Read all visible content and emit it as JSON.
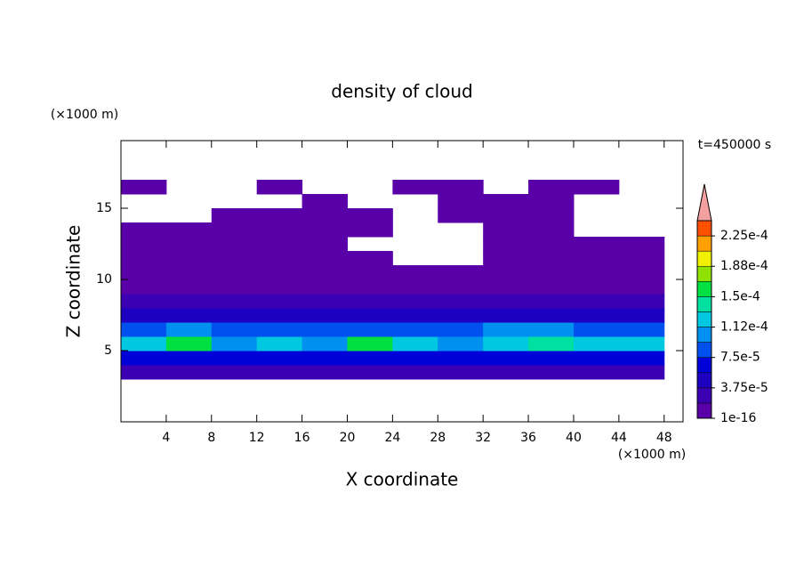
{
  "chart_data": {
    "type": "contour",
    "title": "density of cloud",
    "xlabel": "X coordinate",
    "ylabel": "Z coordinate",
    "xunit": "(×1000 m)",
    "yunit": "(×1000 m)",
    "annotation": "t=450000 s",
    "xlim": [
      0,
      49.67
    ],
    "ylim": [
      0,
      19.75
    ],
    "xticks": [
      4,
      8,
      12,
      16,
      20,
      24,
      28,
      32,
      36,
      40,
      44,
      48
    ],
    "yticks": [
      5,
      10,
      15
    ],
    "x": [
      2,
      6,
      10,
      14,
      18,
      22,
      26,
      30,
      34,
      38,
      42,
      46
    ],
    "y": [
      3.5,
      4.5,
      5.5,
      6.5,
      7.5,
      8.5,
      9.5,
      10.5,
      11.5,
      12.5,
      13.5,
      14.5,
      15.5,
      16.5
    ],
    "z": [
      [
        2e-05,
        2e-05,
        2e-05,
        2e-05,
        2e-05,
        2e-05,
        2e-05,
        2e-05,
        2e-05,
        2e-05,
        2e-05,
        2e-05
      ],
      [
        6e-05,
        7e-05,
        6e-05,
        6e-05,
        7e-05,
        6e-05,
        7e-05,
        6e-05,
        6e-05,
        7e-05,
        6e-05,
        7e-05
      ],
      [
        0.00013,
        0.00015,
        0.00011,
        0.00012,
        0.00011,
        0.00015,
        0.00012,
        0.00011,
        0.00013,
        0.00014,
        0.00013,
        0.00012
      ],
      [
        9e-05,
        0.0001,
        8e-05,
        9e-05,
        8e-05,
        9e-05,
        8e-05,
        8e-05,
        0.0001,
        0.00011,
        9e-05,
        9e-05
      ],
      [
        4e-05,
        5e-05,
        4e-05,
        4e-05,
        4e-05,
        5e-05,
        4e-05,
        4e-05,
        5e-05,
        5e-05,
        4e-05,
        4e-05
      ],
      [
        2e-05,
        2e-05,
        2e-05,
        2e-05,
        2e-05,
        2e-05,
        2e-05,
        2e-05,
        2e-05,
        2e-05,
        2e-05,
        2e-05
      ],
      [
        1e-05,
        5e-06,
        1e-05,
        1e-05,
        5e-06,
        1e-05,
        1e-05,
        5e-06,
        1e-05,
        5e-06,
        1e-05,
        1e-05
      ],
      [
        5e-06,
        5e-06,
        5e-06,
        5e-06,
        5e-06,
        5e-06,
        5e-06,
        5e-06,
        5e-06,
        5e-06,
        5e-06,
        5e-06
      ],
      [
        5e-06,
        5e-06,
        5e-06,
        5e-06,
        5e-06,
        5e-06,
        null,
        null,
        5e-06,
        5e-06,
        5e-06,
        5e-06
      ],
      [
        5e-06,
        5e-06,
        5e-06,
        5e-06,
        5e-06,
        null,
        null,
        null,
        5e-06,
        5e-06,
        5e-06,
        5e-06
      ],
      [
        5e-06,
        5e-06,
        5e-06,
        5e-06,
        5e-06,
        5e-06,
        null,
        null,
        5e-06,
        5e-06,
        null,
        null
      ],
      [
        null,
        null,
        5e-06,
        5e-06,
        5e-06,
        5e-06,
        null,
        5e-06,
        5e-06,
        5e-06,
        null,
        null
      ],
      [
        null,
        null,
        null,
        null,
        5e-06,
        null,
        null,
        5e-06,
        5e-06,
        5e-06,
        null,
        null
      ],
      [
        5e-06,
        null,
        null,
        5e-06,
        null,
        null,
        5e-06,
        5e-06,
        null,
        5e-06,
        5e-06,
        null
      ]
    ],
    "levels": [
      1e-16,
      1.875e-05,
      3.75e-05,
      5.625e-05,
      7.5e-05,
      9.375e-05,
      0.0001125,
      0.00013125,
      0.00015,
      0.00016875,
      0.0001875,
      0.00020625,
      0.000225,
      0.00024375
    ],
    "colors": [
      "#5a00a8",
      "#3c00b4",
      "#1e00c0",
      "#0000d8",
      "#0050f0",
      "#0090f0",
      "#00c8e0",
      "#00e0a0",
      "#00e040",
      "#90e000",
      "#f0f000",
      "#ffa000",
      "#ff5000"
    ],
    "extend_color": "#f4a0a0",
    "cticks": [
      {
        "value": 1e-16,
        "label": "1e-16"
      },
      {
        "value": 3.75e-05,
        "label": "3.75e-5"
      },
      {
        "value": 7.5e-05,
        "label": "7.5e-5"
      },
      {
        "value": 0.0001125,
        "label": "1.12e-4"
      },
      {
        "value": 0.00015,
        "label": "1.5e-4"
      },
      {
        "value": 0.0001875,
        "label": "1.88e-4"
      },
      {
        "value": 0.000225,
        "label": "2.25e-4"
      }
    ]
  }
}
